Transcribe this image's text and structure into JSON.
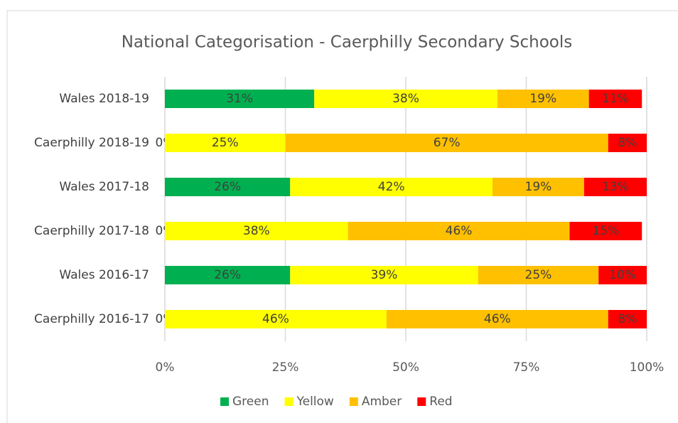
{
  "chart_data": {
    "type": "bar",
    "orientation": "horizontal",
    "stacked": true,
    "title": "National Categorisation - Caerphilly Secondary Schools",
    "categories": [
      "Wales 2018-19",
      "Caerphilly 2018-19",
      "Wales 2017-18",
      "Caerphilly 2017-18",
      "Wales 2016-17",
      "Caerphilly 2016-17"
    ],
    "series": [
      {
        "name": "Green",
        "color": "#00b050",
        "values": [
          31,
          0,
          26,
          0,
          26,
          0
        ],
        "value_labels": [
          "31%",
          "0%",
          "26%",
          "0%",
          "26%",
          "0%"
        ]
      },
      {
        "name": "Yellow",
        "color": "#ffff00",
        "values": [
          38,
          25,
          42,
          38,
          39,
          46
        ],
        "value_labels": [
          "38%",
          "25%",
          "42%",
          "38%",
          "39%",
          "46%"
        ]
      },
      {
        "name": "Amber",
        "color": "#ffc000",
        "values": [
          19,
          67,
          19,
          46,
          25,
          46
        ],
        "value_labels": [
          "19%",
          "67%",
          "19%",
          "46%",
          "25%",
          "46%"
        ]
      },
      {
        "name": "Red",
        "color": "#ff0000",
        "values": [
          11,
          8,
          13,
          15,
          10,
          8
        ],
        "value_labels": [
          "11%",
          "8%",
          "13%",
          "15%",
          "10%",
          "8%"
        ]
      }
    ],
    "xlim": [
      0,
      100
    ],
    "xticks": [
      {
        "value": 0,
        "label": "0%"
      },
      {
        "value": 25,
        "label": "25%"
      },
      {
        "value": 50,
        "label": "50%"
      },
      {
        "value": 75,
        "label": "75%"
      },
      {
        "value": 100,
        "label": "100%"
      }
    ],
    "grid": true,
    "legend": "bottom"
  }
}
